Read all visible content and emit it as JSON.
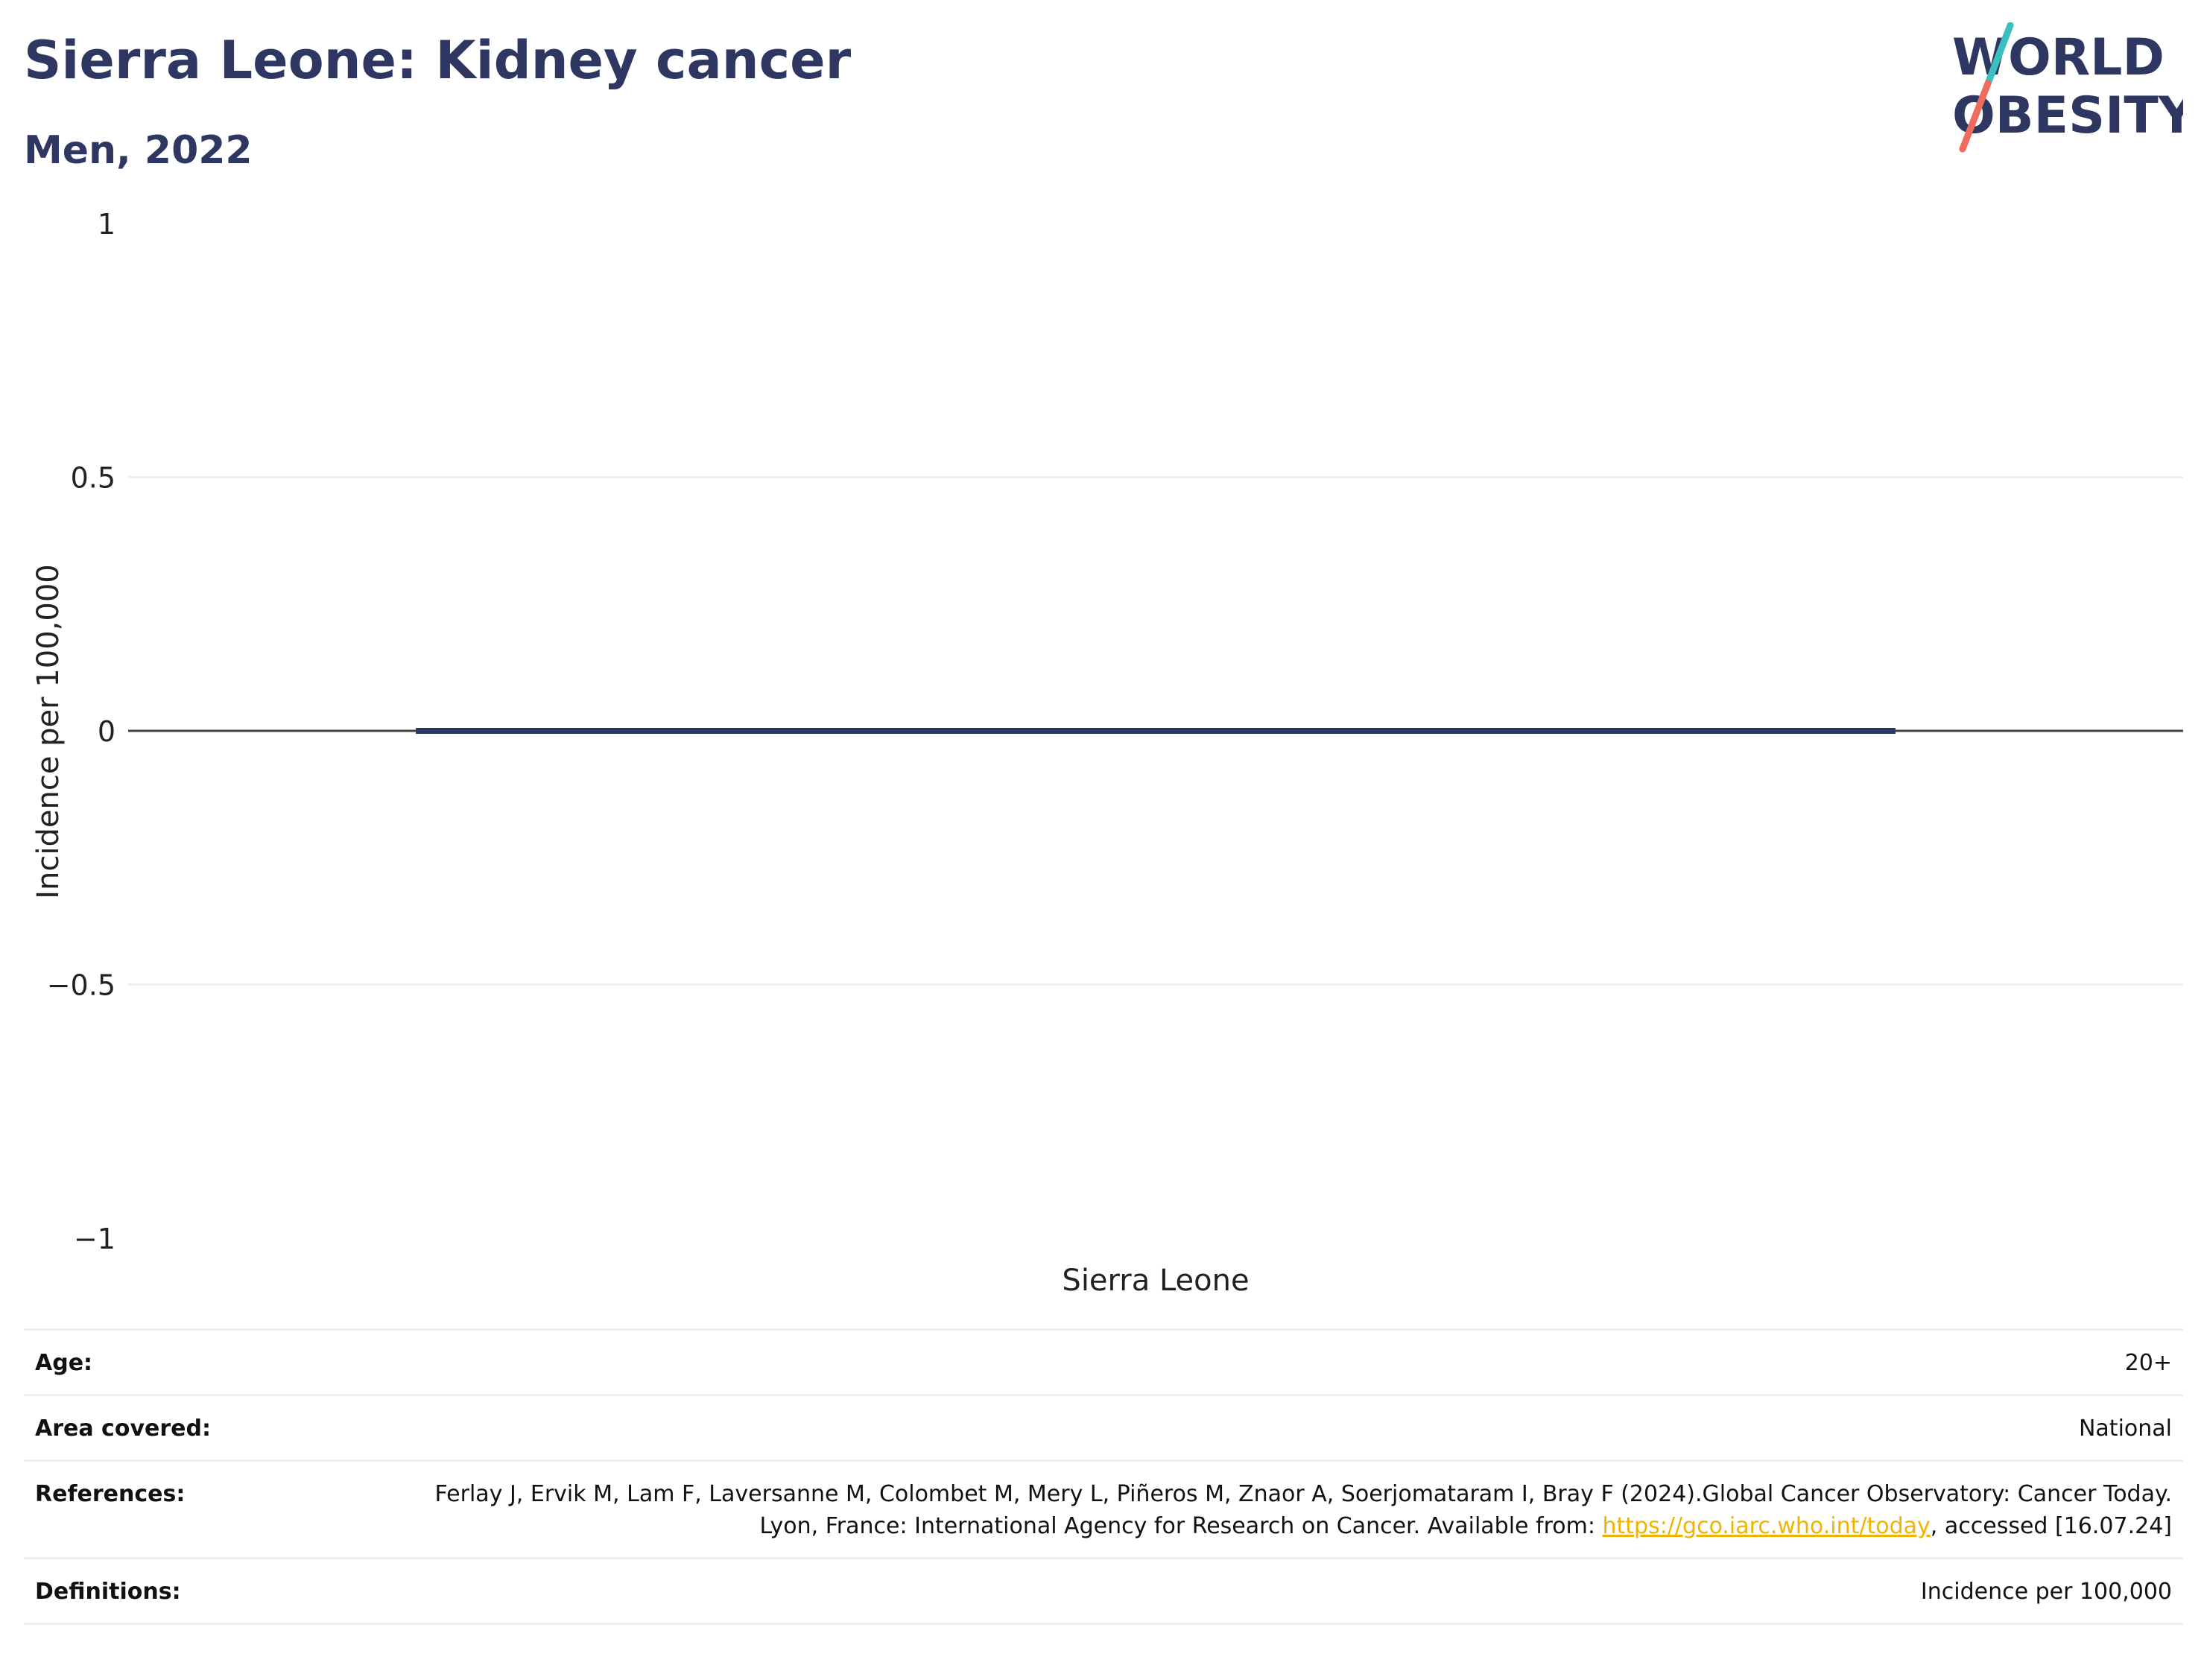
{
  "header": {
    "title": "Sierra Leone: Kidney cancer",
    "subtitle": "Men, 2022"
  },
  "logo": {
    "line1": "WORLD",
    "line2": "OBESITY",
    "colors": {
      "text": "#2d3761",
      "slash_top": "#3bbfbf",
      "slash_bottom": "#ef6b5b"
    }
  },
  "chart_data": {
    "type": "bar",
    "categories": [
      "Sierra Leone"
    ],
    "series": [
      {
        "values": [
          0
        ]
      }
    ],
    "xlabel": "",
    "ylabel": "Incidence per 100,000",
    "ylim": [
      -1,
      1
    ],
    "yticks": [
      1,
      0.5,
      0,
      -0.5,
      -1
    ],
    "ytick_labels": [
      "1",
      "0.5",
      "0",
      "−0.5",
      "−1"
    ],
    "grid": true,
    "legend": "none",
    "colors": {
      "bar": "#2d3761",
      "grid": "#eef0f4",
      "zero_line": "#444444"
    }
  },
  "info": {
    "rows": [
      {
        "key": "Age:",
        "value": "20+"
      },
      {
        "key": "Area covered:",
        "value": "National"
      },
      {
        "key": "References:",
        "value_before": "Ferlay J, Ervik M, Lam F, Laversanne M, Colombet M, Mery L, Piñeros M, Znaor A, Soerjomataram I, Bray F (2024).Global Cancer Observatory: Cancer Today. Lyon, France: International Agency for Research on Cancer. Available from: ",
        "link": "https://gco.iarc.who.int/today",
        "value_after": ", accessed [16.07.24]"
      },
      {
        "key": "Definitions:",
        "value": "Incidence per 100,000"
      }
    ]
  }
}
